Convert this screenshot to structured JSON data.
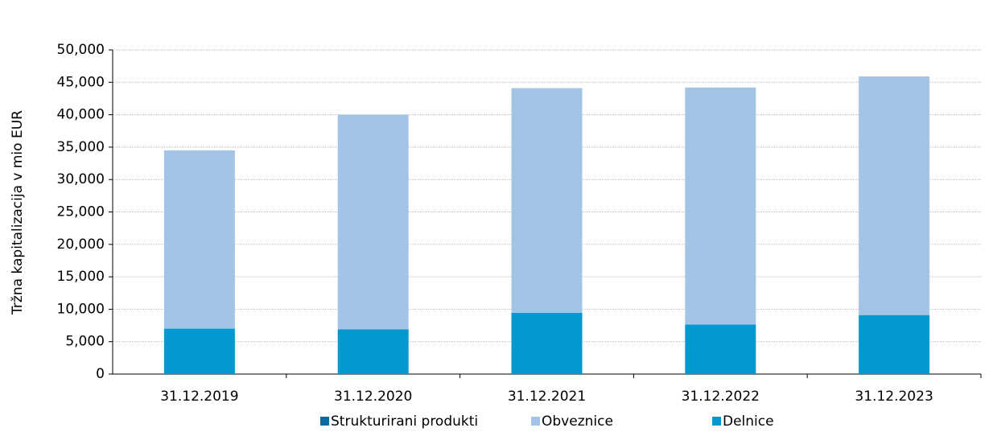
{
  "chart_data": {
    "type": "stacked-bar",
    "y_label": "Tržna kapitalizacija v mio EUR",
    "categories": [
      "31.12.2019",
      "31.12.2020",
      "31.12.2021",
      "31.12.2022",
      "31.12.2023"
    ],
    "series": [
      {
        "name": "Strukturirani produkti",
        "color": "#0b6aa3",
        "values": [
          0,
          0,
          0,
          0,
          0
        ]
      },
      {
        "name": "Obveznice",
        "color": "#a3c4e6",
        "values": [
          27500,
          33100,
          34650,
          36550,
          36800
        ]
      },
      {
        "name": "Delnice",
        "color": "#0399d0",
        "values": [
          7000,
          6900,
          9450,
          7650,
          9100
        ]
      }
    ],
    "ylim": [
      0,
      50000
    ],
    "yticks": [
      0,
      {
        "value": 5000,
        "label": "5,000"
      },
      {
        "value": 10000,
        "label": "10,000"
      },
      {
        "value": 15000,
        "label": "15,000"
      },
      {
        "value": 20000,
        "label": "20,000"
      },
      {
        "value": 25000,
        "label": "25,000"
      },
      {
        "value": 30000,
        "label": "30,000"
      },
      {
        "value": 35000,
        "label": "35,000"
      },
      {
        "value": 40000,
        "label": "40,000"
      },
      {
        "value": 45000,
        "label": "45,000"
      },
      {
        "value": 50000,
        "label": "50,000"
      }
    ],
    "grid": true
  }
}
